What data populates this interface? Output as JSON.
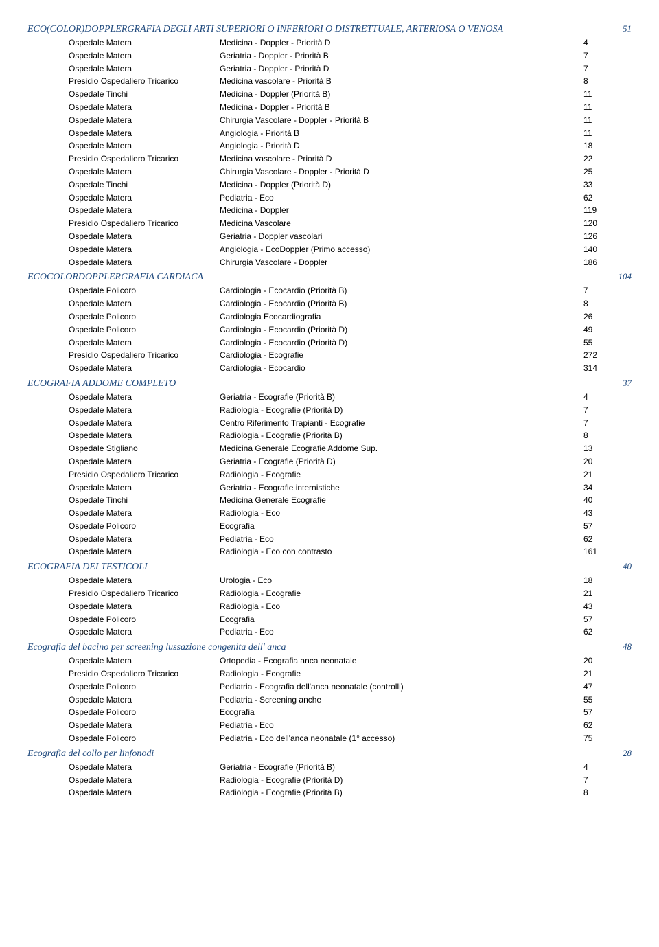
{
  "sections": [
    {
      "title": "ECO(COLOR)DOPPLERGRAFIA DEGLI ARTI SUPERIORI O INFERIORI O DISTRETTUALE, ARTERIOSA O VENOSA",
      "num": "51",
      "rows": [
        {
          "loc": "Ospedale Matera",
          "desc": "Medicina - Doppler - Priorità D",
          "val": "4"
        },
        {
          "loc": "Ospedale Matera",
          "desc": "Geriatria - Doppler - Priorità B",
          "val": "7"
        },
        {
          "loc": "Ospedale Matera",
          "desc": "Geriatria - Doppler - Priorità D",
          "val": "7"
        },
        {
          "loc": "Presidio Ospedaliero Tricarico",
          "desc": "Medicina vascolare - Priorità B",
          "val": "8"
        },
        {
          "loc": "Ospedale Tinchi",
          "desc": "Medicina - Doppler (Priorità B)",
          "val": "11"
        },
        {
          "loc": "Ospedale Matera",
          "desc": "Medicina - Doppler - Priorità B",
          "val": "11"
        },
        {
          "loc": "Ospedale Matera",
          "desc": "Chirurgia Vascolare - Doppler - Priorità B",
          "val": "11"
        },
        {
          "loc": "Ospedale Matera",
          "desc": "Angiologia - Priorità B",
          "val": "11"
        },
        {
          "loc": "Ospedale Matera",
          "desc": "Angiologia - Priorità D",
          "val": "18"
        },
        {
          "loc": "Presidio Ospedaliero Tricarico",
          "desc": "Medicina vascolare - Priorità D",
          "val": "22"
        },
        {
          "loc": "Ospedale Matera",
          "desc": "Chirurgia Vascolare - Doppler - Priorità D",
          "val": "25"
        },
        {
          "loc": "Ospedale Tinchi",
          "desc": "Medicina - Doppler (Priorità D)",
          "val": "33"
        },
        {
          "loc": "Ospedale Matera",
          "desc": "Pediatria - Eco",
          "val": "62"
        },
        {
          "loc": "Ospedale Matera",
          "desc": "Medicina - Doppler",
          "val": "119"
        },
        {
          "loc": "Presidio Ospedaliero Tricarico",
          "desc": "Medicina Vascolare",
          "val": "120"
        },
        {
          "loc": "Ospedale Matera",
          "desc": "Geriatria - Doppler vascolari",
          "val": "126"
        },
        {
          "loc": "Ospedale Matera",
          "desc": "Angiologia - EcoDoppler (Primo accesso)",
          "val": "140"
        },
        {
          "loc": "Ospedale Matera",
          "desc": "Chirurgia Vascolare - Doppler",
          "val": "186"
        }
      ]
    },
    {
      "title": "ECOCOLORDOPPLERGRAFIA CARDIACA",
      "num": "104",
      "rows": [
        {
          "loc": "Ospedale Policoro",
          "desc": "Cardiologia - Ecocardio (Priorità B)",
          "val": "7"
        },
        {
          "loc": "Ospedale Matera",
          "desc": "Cardiologia - Ecocardio (Priorità B)",
          "val": "8"
        },
        {
          "loc": "Ospedale Policoro",
          "desc": "Cardiologia Ecocardiografia",
          "val": "26"
        },
        {
          "loc": "Ospedale Policoro",
          "desc": "Cardiologia - Ecocardio (Priorità D)",
          "val": "49"
        },
        {
          "loc": "Ospedale Matera",
          "desc": "Cardiologia - Ecocardio (Priorità D)",
          "val": "55"
        },
        {
          "loc": "Presidio Ospedaliero Tricarico",
          "desc": "Cardiologia - Ecografie",
          "val": "272"
        },
        {
          "loc": "Ospedale Matera",
          "desc": "Cardiologia - Ecocardio",
          "val": "314"
        }
      ]
    },
    {
      "title": "ECOGRAFIA ADDOME COMPLETO",
      "num": "37",
      "rows": [
        {
          "loc": "Ospedale Matera",
          "desc": "Geriatria - Ecografie (Priorità B)",
          "val": "4"
        },
        {
          "loc": "Ospedale Matera",
          "desc": "Radiologia - Ecografie (Priorità D)",
          "val": "7"
        },
        {
          "loc": "Ospedale Matera",
          "desc": "Centro Riferimento Trapianti - Ecografie",
          "val": "7"
        },
        {
          "loc": "Ospedale Matera",
          "desc": "Radiologia - Ecografie (Priorità B)",
          "val": "8"
        },
        {
          "loc": "Ospedale Stigliano",
          "desc": "Medicina Generale Ecografie Addome Sup.",
          "val": "13"
        },
        {
          "loc": "Ospedale Matera",
          "desc": "Geriatria - Ecografie (Priorità D)",
          "val": "20"
        },
        {
          "loc": "Presidio Ospedaliero Tricarico",
          "desc": "Radiologia - Ecografie",
          "val": "21"
        },
        {
          "loc": "Ospedale Matera",
          "desc": "Geriatria - Ecografie internistiche",
          "val": "34"
        },
        {
          "loc": "Ospedale Tinchi",
          "desc": "Medicina Generale Ecografie",
          "val": "40"
        },
        {
          "loc": "Ospedale Matera",
          "desc": "Radiologia - Eco",
          "val": "43"
        },
        {
          "loc": "Ospedale Policoro",
          "desc": "Ecografia",
          "val": "57"
        },
        {
          "loc": "Ospedale Matera",
          "desc": "Pediatria - Eco",
          "val": "62"
        },
        {
          "loc": "Ospedale Matera",
          "desc": "Radiologia - Eco con contrasto",
          "val": "161"
        }
      ]
    },
    {
      "title": "ECOGRAFIA DEI TESTICOLI",
      "num": "40",
      "rows": [
        {
          "loc": "Ospedale Matera",
          "desc": "Urologia - Eco",
          "val": "18"
        },
        {
          "loc": "Presidio Ospedaliero Tricarico",
          "desc": "Radiologia - Ecografie",
          "val": "21"
        },
        {
          "loc": "Ospedale Matera",
          "desc": "Radiologia - Eco",
          "val": "43"
        },
        {
          "loc": "Ospedale Policoro",
          "desc": "Ecografia",
          "val": "57"
        },
        {
          "loc": "Ospedale Matera",
          "desc": "Pediatria - Eco",
          "val": "62"
        }
      ]
    },
    {
      "title": "Ecografia del bacino per screening lussazione congenita dell' anca",
      "num": "48",
      "rows": [
        {
          "loc": "Ospedale Matera",
          "desc": "Ortopedia - Ecografia anca neonatale",
          "val": "20"
        },
        {
          "loc": "Presidio Ospedaliero Tricarico",
          "desc": "Radiologia - Ecografie",
          "val": "21"
        },
        {
          "loc": "Ospedale Policoro",
          "desc": "Pediatria - Ecografia dell'anca neonatale (controlli)",
          "val": "47"
        },
        {
          "loc": "Ospedale Matera",
          "desc": "Pediatria - Screening anche",
          "val": "55"
        },
        {
          "loc": "Ospedale Policoro",
          "desc": "Ecografia",
          "val": "57"
        },
        {
          "loc": "Ospedale Matera",
          "desc": "Pediatria - Eco",
          "val": "62"
        },
        {
          "loc": "Ospedale Policoro",
          "desc": "Pediatria - Eco dell'anca neonatale (1° accesso)",
          "val": "75"
        }
      ]
    },
    {
      "title": "Ecografia del collo per linfonodi",
      "num": "28",
      "rows": [
        {
          "loc": "Ospedale Matera",
          "desc": "Geriatria - Ecografie (Priorità B)",
          "val": "4"
        },
        {
          "loc": "Ospedale Matera",
          "desc": "Radiologia - Ecografie (Priorità D)",
          "val": "7"
        },
        {
          "loc": "Ospedale Matera",
          "desc": "Radiologia - Ecografie (Priorità B)",
          "val": "8"
        }
      ]
    }
  ]
}
